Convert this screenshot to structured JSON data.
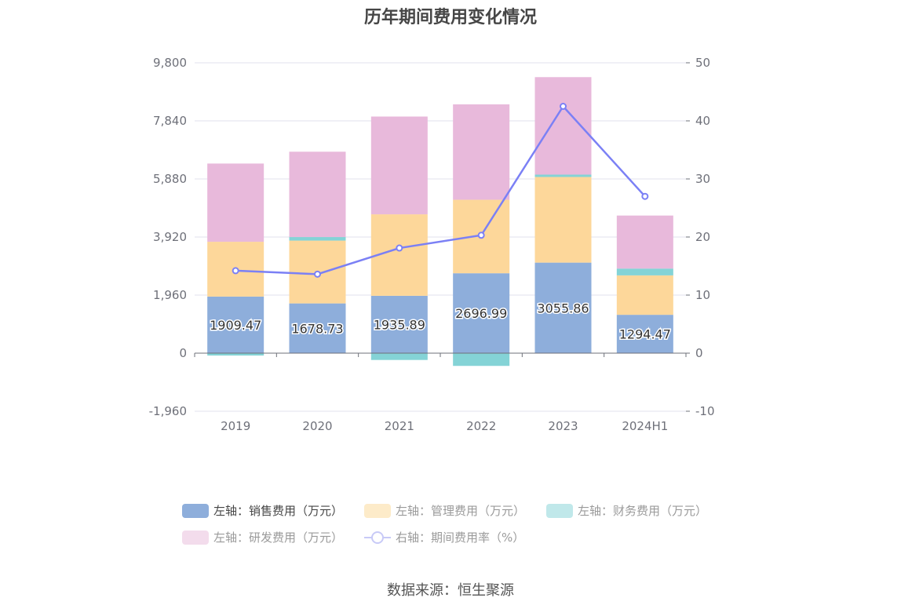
{
  "chart_data": {
    "type": "bar",
    "title": "历年期间费用变化情况",
    "categories": [
      "2019",
      "2020",
      "2021",
      "2022",
      "2023",
      "2024H1"
    ],
    "left_axis": {
      "ticks": [
        "9,800",
        "7,840",
        "5,880",
        "3,920",
        "1,960",
        "0",
        "-1,960"
      ],
      "ylim": [
        -1960,
        9800
      ]
    },
    "right_axis": {
      "ticks": [
        "50",
        "40",
        "30",
        "20",
        "10",
        "0",
        "-10"
      ],
      "ylim": [
        -10,
        50
      ]
    },
    "series": [
      {
        "name": "左轴：销售费用（万元）",
        "color": "#8eaedb",
        "stack": true,
        "values": [
          1909.47,
          1678.73,
          1935.89,
          2696.99,
          3055.86,
          1294.47
        ],
        "labels": [
          "1909.47",
          "1678.73",
          "1935.89",
          "2696.99",
          "3055.86",
          "1294.47"
        ]
      },
      {
        "name": "左轴：管理费用（万元）",
        "color": "#fdd79a",
        "stack": true,
        "values": [
          1850,
          2120,
          2750,
          2480,
          2890,
          1330
        ]
      },
      {
        "name": "左轴：财务费用（万元）",
        "color": "#84d3d6",
        "stack": true,
        "values": [
          -80,
          120,
          -230,
          -430,
          80,
          230
        ]
      },
      {
        "name": "左轴：研发费用（万元）",
        "color": "#e8b9db",
        "stack": true,
        "values": [
          2640,
          2880,
          3300,
          3220,
          3290,
          1790
        ]
      },
      {
        "name": "右轴：期间费用率（%）",
        "color": "#7b80f5",
        "type": "line",
        "axis": "right",
        "values": [
          14.2,
          13.6,
          18.1,
          20.3,
          42.5,
          27.0
        ]
      }
    ],
    "legend": "bottom",
    "grid": true
  },
  "source": "数据来源：恒生聚源"
}
